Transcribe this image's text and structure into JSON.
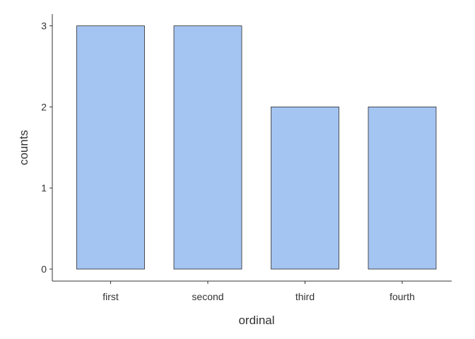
{
  "chart_data": {
    "type": "bar",
    "categories": [
      "first",
      "second",
      "third",
      "fourth"
    ],
    "values": [
      3,
      3,
      2,
      2
    ],
    "xlabel": "ordinal",
    "ylabel": "counts",
    "ylim": [
      0,
      3
    ],
    "yticks": [
      "0",
      "1",
      "2",
      "3"
    ],
    "bar_color": "#a4c4f2",
    "bar_outline_color": "#2b2b2b",
    "grid": false,
    "legend": "none"
  }
}
